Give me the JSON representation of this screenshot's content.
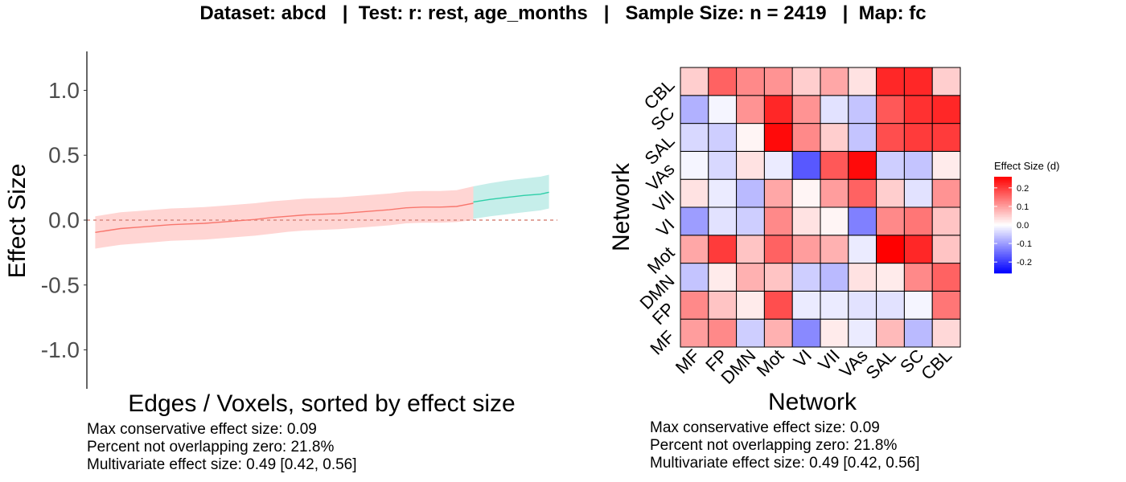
{
  "title": "Dataset: abcd   |  Test: r: rest, age_months   |   Sample Size: n = 2419   |  Map: fc",
  "chart_data": [
    {
      "type": "line",
      "description": "effect sizes sorted with confidence band",
      "xlabel": "Edges / Voxels, sorted by effect size",
      "ylabel": "Effect Size",
      "ylim": [
        -1.3,
        1.3
      ],
      "yticks": [
        1.0,
        0.5,
        0.0,
        -0.5,
        -1.0
      ],
      "ytick_labels": [
        "1.0",
        "0.5",
        "0.0",
        "-0.5",
        "-1.0"
      ],
      "zero_line": true,
      "n_points": 55,
      "series": [
        {
          "color": "#f8766d",
          "band_color": "#ffd5d3",
          "x": [
            1,
            4,
            6,
            8,
            10,
            12,
            14,
            16,
            18,
            20,
            22,
            24,
            26,
            28,
            30,
            32,
            34,
            36,
            38,
            40,
            42,
            44,
            46
          ],
          "y": [
            -0.095,
            -0.065,
            -0.055,
            -0.045,
            -0.035,
            -0.03,
            -0.025,
            -0.015,
            -0.005,
            0.005,
            0.02,
            0.03,
            0.04,
            0.045,
            0.05,
            0.06,
            0.07,
            0.08,
            0.095,
            0.1,
            0.1,
            0.105,
            0.13
          ],
          "lower": [
            -0.22,
            -0.19,
            -0.18,
            -0.17,
            -0.16,
            -0.155,
            -0.15,
            -0.14,
            -0.13,
            -0.12,
            -0.105,
            -0.09,
            -0.08,
            -0.075,
            -0.07,
            -0.06,
            -0.05,
            -0.04,
            -0.025,
            -0.02,
            -0.02,
            -0.015,
            0.0
          ],
          "upper": [
            0.03,
            0.06,
            0.07,
            0.08,
            0.09,
            0.095,
            0.1,
            0.11,
            0.12,
            0.13,
            0.145,
            0.155,
            0.165,
            0.17,
            0.175,
            0.185,
            0.195,
            0.205,
            0.22,
            0.225,
            0.225,
            0.23,
            0.26
          ]
        },
        {
          "color": "#2ecfa8",
          "band_color": "#c6eeea",
          "x": [
            46,
            48,
            50,
            52,
            54,
            55
          ],
          "y": [
            0.14,
            0.16,
            0.175,
            0.19,
            0.2,
            0.215
          ],
          "lower": [
            0.01,
            0.03,
            0.045,
            0.06,
            0.075,
            0.09
          ],
          "upper": [
            0.26,
            0.285,
            0.305,
            0.32,
            0.335,
            0.35
          ]
        }
      ]
    },
    {
      "type": "heatmap",
      "xlabel": "Network",
      "ylabel": "Network",
      "x_categories": [
        "MF",
        "FP",
        "DMN",
        "Mot",
        "VI",
        "VII",
        "VAs",
        "SAL",
        "SC",
        "CBL"
      ],
      "y_categories": [
        "MF",
        "FP",
        "DMN",
        "Mot",
        "VI",
        "VII",
        "VAs",
        "SAL",
        "SC",
        "CBL"
      ],
      "rows_bottom_to_top": [
        [
          0.1,
          0.12,
          -0.05,
          0.08,
          -0.12,
          0.02,
          -0.02,
          0.07,
          -0.07,
          0.04
        ],
        [
          0.12,
          0.06,
          0.02,
          0.18,
          -0.02,
          -0.02,
          -0.03,
          -0.03,
          -0.01,
          0.14
        ],
        [
          -0.06,
          0.02,
          0.08,
          0.06,
          -0.05,
          -0.07,
          0.03,
          0.02,
          0.12,
          0.16
        ],
        [
          0.09,
          0.2,
          0.06,
          0.16,
          0.1,
          0.08,
          -0.02,
          0.26,
          0.22,
          0.06
        ],
        [
          -0.1,
          -0.03,
          -0.05,
          0.12,
          0.03,
          0.01,
          -0.13,
          0.12,
          0.14,
          0.06
        ],
        [
          0.03,
          -0.02,
          -0.07,
          0.09,
          0.01,
          0.1,
          0.16,
          0.05,
          -0.03,
          0.11
        ],
        [
          -0.01,
          -0.04,
          0.03,
          -0.02,
          -0.17,
          0.17,
          0.25,
          -0.05,
          -0.06,
          0.02
        ],
        [
          -0.04,
          -0.05,
          0.01,
          0.25,
          0.12,
          0.05,
          -0.06,
          0.18,
          0.2,
          0.2
        ],
        [
          -0.08,
          -0.01,
          0.11,
          0.22,
          0.11,
          -0.03,
          -0.06,
          0.17,
          0.21,
          0.22
        ],
        [
          0.05,
          0.16,
          0.12,
          0.11,
          0.05,
          0.09,
          0.03,
          0.22,
          0.22,
          0.05
        ]
      ],
      "legend": {
        "title": "Effect Size (d)",
        "ticks": [
          0.2,
          0.1,
          0.0,
          -0.1,
          -0.2
        ],
        "tick_labels": [
          "0.2",
          "0.1",
          "0.0",
          "-0.1",
          "-0.2"
        ],
        "range": [
          -0.26,
          0.26
        ],
        "low_color": "#0000ff",
        "mid_color": "#ffffff",
        "high_color": "#ff0000"
      }
    }
  ],
  "stats_left": [
    "Max conservative effect size: 0.09",
    "Percent not overlapping zero: 21.8%",
    "Multivariate effect size: 0.49 [0.42, 0.56]"
  ],
  "stats_right": [
    "Max conservative effect size: 0.09",
    "Percent not overlapping zero: 21.8%",
    "Multivariate effect size: 0.49 [0.42, 0.56]"
  ]
}
